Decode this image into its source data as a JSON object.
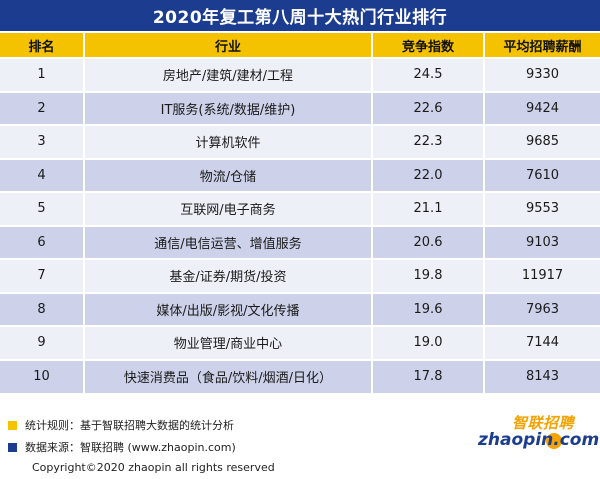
{
  "title": "2020年复工第八周十大热门行业排行",
  "table": {
    "headers": [
      "排名",
      "行业",
      "竞争指数",
      "平均招聘薪酬"
    ],
    "rows": [
      {
        "rank": "1",
        "industry": "房地产/建筑/建材/工程",
        "index": "24.5",
        "salary": "9330"
      },
      {
        "rank": "2",
        "industry": "IT服务(系统/数据/维护)",
        "index": "22.6",
        "salary": "9424"
      },
      {
        "rank": "3",
        "industry": "计算机软件",
        "index": "22.3",
        "salary": "9685"
      },
      {
        "rank": "4",
        "industry": "物流/仓储",
        "index": "22.0",
        "salary": "7610"
      },
      {
        "rank": "5",
        "industry": "互联网/电子商务",
        "index": "21.1",
        "salary": "9553"
      },
      {
        "rank": "6",
        "industry": "通信/电信运营、增值服务",
        "index": "20.6",
        "salary": "9103"
      },
      {
        "rank": "7",
        "industry": "基金/证券/期货/投资",
        "index": "19.8",
        "salary": "11917"
      },
      {
        "rank": "8",
        "industry": "媒体/出版/影视/文化传播",
        "index": "19.6",
        "salary": "7963"
      },
      {
        "rank": "9",
        "industry": "物业管理/商业中心",
        "index": "19.0",
        "salary": "7144"
      },
      {
        "rank": "10",
        "industry": "快速消费品（食品/饮料/烟酒/日化）",
        "index": "17.8",
        "salary": "8143"
      }
    ]
  },
  "footer": {
    "rule_label": "统计规则：基于智联招聘大数据的统计分析",
    "source_label": "数据来源：智联招聘 (www.zhaopin.com)",
    "copyright": "Copyright©2020 zhaopin all rights reserved"
  },
  "logo": {
    "cn": "智联招聘",
    "en": "zhaopin.com"
  },
  "colors": {
    "title_bg": "#1c3d8f",
    "header_bg": "#f5c200",
    "row_light": "#eef0f8",
    "row_dark": "#cdd2ea",
    "legend_yellow": "#f5c200",
    "legend_blue": "#1c3d8f"
  }
}
